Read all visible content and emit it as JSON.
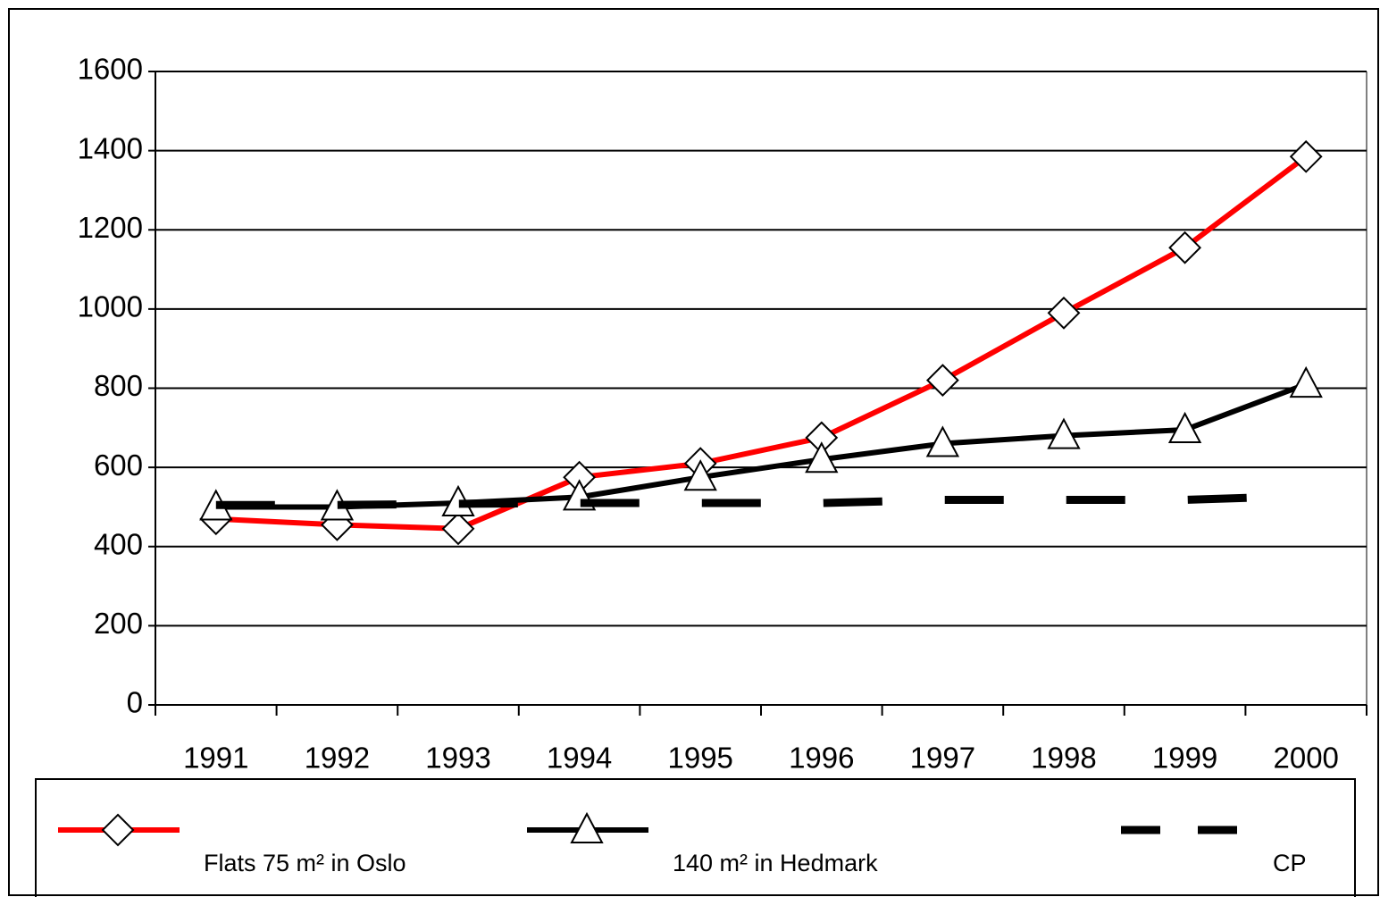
{
  "chart_data": {
    "type": "line",
    "categories": [
      "1991",
      "1992",
      "1993",
      "1994",
      "1995",
      "1996",
      "1997",
      "1998",
      "1999",
      "2000"
    ],
    "series": [
      {
        "name": "Flats 75 m² in Oslo",
        "color": "#ff0000",
        "marker": "diamond",
        "dashed": false,
        "values": [
          470,
          455,
          445,
          575,
          610,
          675,
          820,
          990,
          1155,
          1385
        ]
      },
      {
        "name": "140 m² in Hedmark",
        "color": "#000000",
        "marker": "triangle",
        "dashed": false,
        "values": [
          500,
          500,
          510,
          525,
          575,
          620,
          660,
          680,
          695,
          810
        ]
      },
      {
        "name": "CP",
        "color": "#000000",
        "marker": null,
        "dashed": true,
        "values": [
          505,
          505,
          508,
          510,
          510,
          510,
          518,
          518,
          518,
          528
        ]
      }
    ],
    "ylim": [
      0,
      1600
    ],
    "yticks": [
      0,
      200,
      400,
      600,
      800,
      1000,
      1200,
      1400,
      1600
    ],
    "grid": true,
    "legend": "bottom"
  }
}
